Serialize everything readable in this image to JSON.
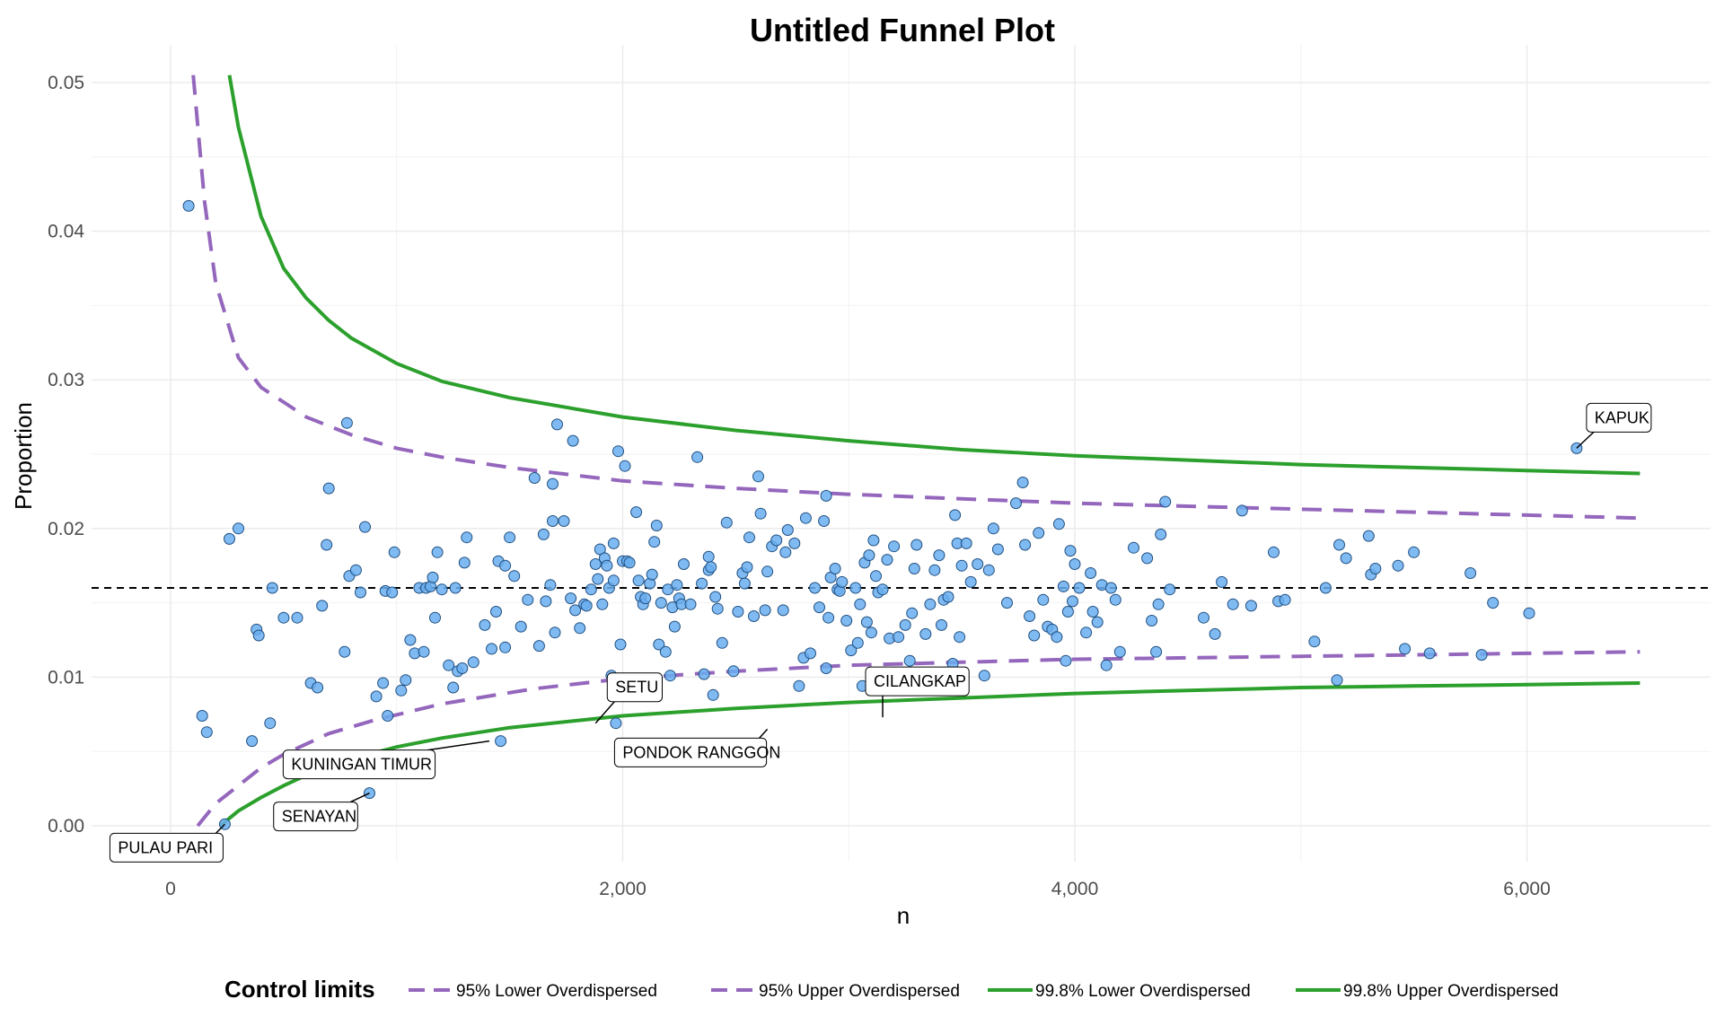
{
  "colors": {
    "limit95": "#9467bd",
    "limit998": "#2ca02c",
    "point_fill": "#6aaef0",
    "point_stroke": "#1f4f80",
    "target": "#000000",
    "grid": "#ebebeb"
  },
  "chart_data": {
    "type": "scatter",
    "title": "Untitled Funnel Plot",
    "xlabel": "n",
    "ylabel": "Proportion",
    "xlim": [
      -350,
      6800
    ],
    "ylim": [
      -0.0025,
      0.0525
    ],
    "x_ticks": [
      0,
      2000,
      4000,
      6000
    ],
    "x_tick_labels": [
      "0",
      "2,000",
      "4,000",
      "6,000"
    ],
    "y_ticks": [
      0.0,
      0.01,
      0.02,
      0.03,
      0.04,
      0.05
    ],
    "y_tick_labels": [
      "0.00",
      "0.01",
      "0.02",
      "0.03",
      "0.04",
      "0.05"
    ],
    "grid": true,
    "target": 0.016,
    "legend": {
      "title": "Control limits",
      "position": "bottom",
      "entries": [
        {
          "label": "95% Lower Overdispersed",
          "style": "dashed",
          "color": "#9467bd"
        },
        {
          "label": "95% Upper Overdispersed",
          "style": "dashed",
          "color": "#9467bd"
        },
        {
          "label": "99.8% Lower Overdispersed",
          "style": "solid",
          "color": "#2ca02c"
        },
        {
          "label": "99.8% Upper Overdispersed",
          "style": "solid",
          "color": "#2ca02c"
        }
      ]
    },
    "series": [
      {
        "name": "95% Lower Overdispersed",
        "line": "dashed",
        "x": [
          120,
          200,
          300,
          400,
          500,
          700,
          900,
          1200,
          1600,
          2000,
          2500,
          3000,
          3500,
          4000,
          4500,
          5000,
          5500,
          6000,
          6500
        ],
        "y": [
          0.0,
          0.0015,
          0.0027,
          0.0039,
          0.0048,
          0.0062,
          0.0071,
          0.0082,
          0.0092,
          0.0099,
          0.0104,
          0.0108,
          0.011,
          0.0112,
          0.0113,
          0.0114,
          0.0115,
          0.0116,
          0.0117
        ]
      },
      {
        "name": "95% Upper Overdispersed",
        "line": "dashed",
        "x": [
          100,
          150,
          200,
          300,
          400,
          500,
          600,
          800,
          1000,
          1200,
          1500,
          2000,
          2500,
          3000,
          3500,
          4000,
          4500,
          5000,
          5500,
          6000,
          6500
        ],
        "y": [
          0.0505,
          0.042,
          0.0365,
          0.0315,
          0.0295,
          0.0285,
          0.0275,
          0.0263,
          0.0254,
          0.0248,
          0.0241,
          0.0232,
          0.0227,
          0.0223,
          0.022,
          0.0217,
          0.0215,
          0.0213,
          0.0211,
          0.0209,
          0.0207
        ]
      },
      {
        "name": "99.8% Lower Overdispersed",
        "line": "solid",
        "x": [
          220,
          300,
          400,
          500,
          600,
          800,
          1000,
          1200,
          1500,
          2000,
          2500,
          3000,
          3500,
          4000,
          4500,
          5000,
          5500,
          6000,
          6500
        ],
        "y": [
          0.0,
          0.001,
          0.0019,
          0.0027,
          0.0034,
          0.0045,
          0.0053,
          0.0059,
          0.0066,
          0.0074,
          0.0079,
          0.0083,
          0.0086,
          0.0089,
          0.0091,
          0.0093,
          0.0094,
          0.0095,
          0.0096
        ]
      },
      {
        "name": "99.8% Upper Overdispersed",
        "line": "solid",
        "x": [
          260,
          300,
          400,
          500,
          600,
          700,
          800,
          1000,
          1200,
          1500,
          2000,
          2500,
          3000,
          3500,
          4000,
          4500,
          5000,
          5500,
          6000,
          6500
        ],
        "y": [
          0.0505,
          0.047,
          0.041,
          0.0375,
          0.0355,
          0.034,
          0.0328,
          0.0311,
          0.0299,
          0.0288,
          0.0275,
          0.0266,
          0.0259,
          0.0253,
          0.0249,
          0.0246,
          0.0243,
          0.0241,
          0.0239,
          0.0237
        ]
      }
    ],
    "points": [
      [
        80,
        0.0417
      ],
      [
        140,
        0.0074
      ],
      [
        160,
        0.0063
      ],
      [
        240,
        0.0001
      ],
      [
        260,
        0.0193
      ],
      [
        300,
        0.02
      ],
      [
        360,
        0.0057
      ],
      [
        380,
        0.0132
      ],
      [
        390,
        0.0128
      ],
      [
        440,
        0.0069
      ],
      [
        450,
        0.016
      ],
      [
        500,
        0.014
      ],
      [
        560,
        0.014
      ],
      [
        620,
        0.0096
      ],
      [
        650,
        0.0093
      ],
      [
        670,
        0.0148
      ],
      [
        690,
        0.0189
      ],
      [
        700,
        0.0227
      ],
      [
        770,
        0.0117
      ],
      [
        780,
        0.0271
      ],
      [
        790,
        0.0168
      ],
      [
        820,
        0.0172
      ],
      [
        840,
        0.0157
      ],
      [
        860,
        0.0201
      ],
      [
        880,
        0.0022
      ],
      [
        910,
        0.0087
      ],
      [
        940,
        0.0096
      ],
      [
        950,
        0.0158
      ],
      [
        960,
        0.0074
      ],
      [
        980,
        0.0157
      ],
      [
        990,
        0.0184
      ],
      [
        1020,
        0.0091
      ],
      [
        1040,
        0.0098
      ],
      [
        1060,
        0.0125
      ],
      [
        1080,
        0.0116
      ],
      [
        1100,
        0.016
      ],
      [
        1120,
        0.0117
      ],
      [
        1130,
        0.016
      ],
      [
        1150,
        0.0161
      ],
      [
        1160,
        0.0167
      ],
      [
        1170,
        0.014
      ],
      [
        1180,
        0.0184
      ],
      [
        1200,
        0.0159
      ],
      [
        1230,
        0.0108
      ],
      [
        1250,
        0.0093
      ],
      [
        1260,
        0.016
      ],
      [
        1270,
        0.0104
      ],
      [
        1290,
        0.0106
      ],
      [
        1300,
        0.0177
      ],
      [
        1310,
        0.0194
      ],
      [
        1340,
        0.011
      ],
      [
        1390,
        0.0135
      ],
      [
        1420,
        0.0119
      ],
      [
        1440,
        0.0144
      ],
      [
        1450,
        0.0178
      ],
      [
        1460,
        0.0057
      ],
      [
        1480,
        0.012
      ],
      [
        1480,
        0.0175
      ],
      [
        1500,
        0.0194
      ],
      [
        1520,
        0.0168
      ],
      [
        1550,
        0.0134
      ],
      [
        1580,
        0.0152
      ],
      [
        1610,
        0.0234
      ],
      [
        1630,
        0.0121
      ],
      [
        1650,
        0.0196
      ],
      [
        1660,
        0.0151
      ],
      [
        1680,
        0.0162
      ],
      [
        1690,
        0.0205
      ],
      [
        1690,
        0.023
      ],
      [
        1700,
        0.013
      ],
      [
        1710,
        0.027
      ],
      [
        1740,
        0.0205
      ],
      [
        1770,
        0.0153
      ],
      [
        1780,
        0.0259
      ],
      [
        1790,
        0.0145
      ],
      [
        1810,
        0.0133
      ],
      [
        1830,
        0.0149
      ],
      [
        1840,
        0.0148
      ],
      [
        1860,
        0.0159
      ],
      [
        1880,
        0.0176
      ],
      [
        1890,
        0.0166
      ],
      [
        1900,
        0.0186
      ],
      [
        1910,
        0.0149
      ],
      [
        1920,
        0.018
      ],
      [
        1930,
        0.0175
      ],
      [
        1940,
        0.016
      ],
      [
        1950,
        0.0101
      ],
      [
        1960,
        0.0165
      ],
      [
        1960,
        0.019
      ],
      [
        1970,
        0.0069
      ],
      [
        1980,
        0.0252
      ],
      [
        1990,
        0.0122
      ],
      [
        2000,
        0.0178
      ],
      [
        2010,
        0.0242
      ],
      [
        2020,
        0.0178
      ],
      [
        2030,
        0.0177
      ],
      [
        2040,
        0.0098
      ],
      [
        2060,
        0.0211
      ],
      [
        2070,
        0.0165
      ],
      [
        2080,
        0.0154
      ],
      [
        2090,
        0.0149
      ],
      [
        2100,
        0.0153
      ],
      [
        2120,
        0.0163
      ],
      [
        2130,
        0.0169
      ],
      [
        2140,
        0.0191
      ],
      [
        2150,
        0.0202
      ],
      [
        2160,
        0.0122
      ],
      [
        2170,
        0.015
      ],
      [
        2190,
        0.0117
      ],
      [
        2200,
        0.0159
      ],
      [
        2210,
        0.0101
      ],
      [
        2220,
        0.0147
      ],
      [
        2230,
        0.0134
      ],
      [
        2240,
        0.0162
      ],
      [
        2250,
        0.0153
      ],
      [
        2260,
        0.0149
      ],
      [
        2270,
        0.0176
      ],
      [
        2300,
        0.0149
      ],
      [
        2330,
        0.0248
      ],
      [
        2350,
        0.0163
      ],
      [
        2360,
        0.0102
      ],
      [
        2380,
        0.0181
      ],
      [
        2380,
        0.0172
      ],
      [
        2390,
        0.0174
      ],
      [
        2400,
        0.0088
      ],
      [
        2410,
        0.0154
      ],
      [
        2420,
        0.0146
      ],
      [
        2440,
        0.0123
      ],
      [
        2460,
        0.0204
      ],
      [
        2490,
        0.0104
      ],
      [
        2510,
        0.0144
      ],
      [
        2530,
        0.017
      ],
      [
        2540,
        0.0163
      ],
      [
        2550,
        0.0174
      ],
      [
        2560,
        0.0194
      ],
      [
        2580,
        0.0141
      ],
      [
        2600,
        0.0235
      ],
      [
        2610,
        0.021
      ],
      [
        2630,
        0.0145
      ],
      [
        2640,
        0.0171
      ],
      [
        2660,
        0.0188
      ],
      [
        2680,
        0.0192
      ],
      [
        2710,
        0.0145
      ],
      [
        2720,
        0.0184
      ],
      [
        2730,
        0.0199
      ],
      [
        2760,
        0.019
      ],
      [
        2780,
        0.0094
      ],
      [
        2800,
        0.0113
      ],
      [
        2810,
        0.0207
      ],
      [
        2830,
        0.0116
      ],
      [
        2850,
        0.016
      ],
      [
        2870,
        0.0147
      ],
      [
        2890,
        0.0205
      ],
      [
        2900,
        0.0106
      ],
      [
        2900,
        0.0222
      ],
      [
        2910,
        0.014
      ],
      [
        2920,
        0.0167
      ],
      [
        2940,
        0.0173
      ],
      [
        2950,
        0.0159
      ],
      [
        2960,
        0.0158
      ],
      [
        2970,
        0.0164
      ],
      [
        2990,
        0.0138
      ],
      [
        3010,
        0.0118
      ],
      [
        3030,
        0.016
      ],
      [
        3040,
        0.0123
      ],
      [
        3050,
        0.0149
      ],
      [
        3060,
        0.0094
      ],
      [
        3070,
        0.0177
      ],
      [
        3080,
        0.0137
      ],
      [
        3090,
        0.0182
      ],
      [
        3100,
        0.013
      ],
      [
        3110,
        0.0192
      ],
      [
        3120,
        0.0168
      ],
      [
        3130,
        0.0157
      ],
      [
        3150,
        0.0159
      ],
      [
        3170,
        0.0179
      ],
      [
        3180,
        0.0126
      ],
      [
        3200,
        0.0188
      ],
      [
        3220,
        0.0127
      ],
      [
        3240,
        0.0103
      ],
      [
        3250,
        0.0135
      ],
      [
        3260,
        0.0095
      ],
      [
        3270,
        0.0111
      ],
      [
        3280,
        0.0143
      ],
      [
        3290,
        0.0173
      ],
      [
        3300,
        0.0189
      ],
      [
        3340,
        0.0129
      ],
      [
        3360,
        0.0149
      ],
      [
        3380,
        0.0172
      ],
      [
        3400,
        0.0182
      ],
      [
        3410,
        0.0135
      ],
      [
        3420,
        0.0152
      ],
      [
        3440,
        0.0154
      ],
      [
        3460,
        0.0109
      ],
      [
        3470,
        0.0209
      ],
      [
        3480,
        0.019
      ],
      [
        3490,
        0.0127
      ],
      [
        3500,
        0.0175
      ],
      [
        3520,
        0.019
      ],
      [
        3540,
        0.0164
      ],
      [
        3570,
        0.0176
      ],
      [
        3600,
        0.0101
      ],
      [
        3620,
        0.0172
      ],
      [
        3640,
        0.02
      ],
      [
        3660,
        0.0186
      ],
      [
        3700,
        0.015
      ],
      [
        3740,
        0.0217
      ],
      [
        3770,
        0.0231
      ],
      [
        3780,
        0.0189
      ],
      [
        3800,
        0.0141
      ],
      [
        3820,
        0.0128
      ],
      [
        3840,
        0.0197
      ],
      [
        3860,
        0.0152
      ],
      [
        3880,
        0.0134
      ],
      [
        3900,
        0.0132
      ],
      [
        3920,
        0.0127
      ],
      [
        3930,
        0.0203
      ],
      [
        3950,
        0.0161
      ],
      [
        3960,
        0.0111
      ],
      [
        3970,
        0.0144
      ],
      [
        3980,
        0.0185
      ],
      [
        3990,
        0.0151
      ],
      [
        4000,
        0.0176
      ],
      [
        4020,
        0.016
      ],
      [
        4050,
        0.013
      ],
      [
        4070,
        0.017
      ],
      [
        4080,
        0.0144
      ],
      [
        4100,
        0.0137
      ],
      [
        4120,
        0.0162
      ],
      [
        4140,
        0.0108
      ],
      [
        4160,
        0.016
      ],
      [
        4180,
        0.0152
      ],
      [
        4200,
        0.0117
      ],
      [
        4260,
        0.0187
      ],
      [
        4320,
        0.018
      ],
      [
        4340,
        0.0138
      ],
      [
        4360,
        0.0117
      ],
      [
        4370,
        0.0149
      ],
      [
        4380,
        0.0196
      ],
      [
        4400,
        0.0218
      ],
      [
        4420,
        0.0159
      ],
      [
        4570,
        0.014
      ],
      [
        4620,
        0.0129
      ],
      [
        4650,
        0.0164
      ],
      [
        4700,
        0.0149
      ],
      [
        4740,
        0.0212
      ],
      [
        4780,
        0.0148
      ],
      [
        4880,
        0.0184
      ],
      [
        4900,
        0.0151
      ],
      [
        4930,
        0.0152
      ],
      [
        5060,
        0.0124
      ],
      [
        5110,
        0.016
      ],
      [
        5160,
        0.0098
      ],
      [
        5170,
        0.0189
      ],
      [
        5200,
        0.018
      ],
      [
        5300,
        0.0195
      ],
      [
        5310,
        0.0169
      ],
      [
        5330,
        0.0173
      ],
      [
        5430,
        0.0175
      ],
      [
        5460,
        0.0119
      ],
      [
        5500,
        0.0184
      ],
      [
        5570,
        0.0116
      ],
      [
        5750,
        0.017
      ],
      [
        5800,
        0.0115
      ],
      [
        5850,
        0.015
      ],
      [
        6010,
        0.0143
      ],
      [
        6220,
        0.0254
      ]
    ],
    "annotations": [
      {
        "label": "KAPUK",
        "x": 6220,
        "y": 0.0254
      },
      {
        "label": "CILANGKAP",
        "x": 3150,
        "y": 0.0073
      },
      {
        "label": "SETU",
        "x": 1880,
        "y": 0.0069
      },
      {
        "label": "PONDOK RANGGON",
        "x": 2640,
        "y": 0.0065
      },
      {
        "label": "KUNINGAN TIMUR",
        "x": 1410,
        "y": 0.0057
      },
      {
        "label": "SENAYAN",
        "x": 880,
        "y": 0.0022
      },
      {
        "label": "PULAU PARI",
        "x": 240,
        "y": 0.0001
      }
    ]
  }
}
